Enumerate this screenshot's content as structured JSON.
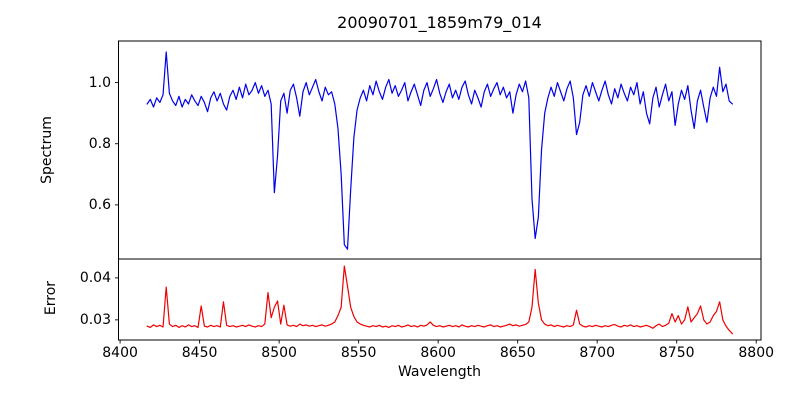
{
  "chart_data": {
    "type": "line",
    "title": "20090701_1859m79_014",
    "xlabel": "Wavelength",
    "xlim": [
      8399,
      8803
    ],
    "xticks": [
      8400,
      8450,
      8500,
      8550,
      8600,
      8650,
      8700,
      8750,
      8800
    ],
    "xtick_labels": [
      "8400",
      "8450",
      "8500",
      "8550",
      "8600",
      "8650",
      "8700",
      "8750",
      "8800"
    ],
    "grid": false,
    "legend": "none",
    "panels": [
      {
        "name": "spectrum",
        "ylabel": "Spectrum",
        "ylim": [
          0.423,
          1.136
        ],
        "ytick_values": [
          1.0,
          0.8,
          0.6
        ],
        "ytick_labels": [
          "1.0",
          "0.8",
          "0.6"
        ],
        "line_color": "#0000ee",
        "absorption_features": [
          {
            "wavelength": 8498,
            "depth": 0.64
          },
          {
            "wavelength": 8542,
            "depth": 0.455
          },
          {
            "wavelength": 8662,
            "depth": 0.49
          }
        ],
        "series": {
          "x_start": 8417,
          "x_step": 2,
          "values": [
            0.93,
            0.945,
            0.92,
            0.95,
            0.935,
            0.96,
            1.1,
            0.965,
            0.94,
            0.925,
            0.955,
            0.92,
            0.945,
            0.93,
            0.96,
            0.94,
            0.925,
            0.955,
            0.935,
            0.905,
            0.95,
            0.97,
            0.94,
            0.965,
            0.93,
            0.91,
            0.955,
            0.975,
            0.945,
            0.985,
            0.95,
            0.995,
            0.96,
            0.975,
            1.0,
            0.965,
            0.99,
            0.955,
            0.975,
            0.93,
            0.64,
            0.76,
            0.94,
            0.965,
            0.9,
            0.975,
            0.995,
            0.95,
            0.89,
            0.97,
            1.0,
            0.96,
            0.985,
            1.01,
            0.97,
            0.94,
            0.985,
            0.96,
            0.97,
            0.93,
            0.85,
            0.7,
            0.47,
            0.455,
            0.65,
            0.82,
            0.91,
            0.95,
            0.975,
            0.94,
            0.99,
            0.96,
            1.005,
            0.97,
            0.945,
            0.985,
            1.01,
            0.965,
            0.99,
            0.955,
            0.975,
            1.0,
            0.94,
            0.97,
            0.995,
            0.96,
            0.925,
            0.975,
            1.0,
            0.955,
            0.98,
            1.01,
            0.965,
            0.935,
            0.97,
            0.995,
            0.95,
            0.975,
            0.945,
            0.985,
            1.005,
            0.96,
            0.93,
            0.975,
            0.95,
            0.92,
            0.97,
            0.995,
            0.955,
            0.98,
            1.0,
            0.96,
            0.985,
            0.95,
            0.97,
            0.9,
            0.96,
            0.995,
            0.97,
            1.005,
            0.95,
            0.62,
            0.49,
            0.56,
            0.78,
            0.9,
            0.95,
            0.985,
            0.955,
            1.0,
            0.97,
            0.94,
            0.98,
            1.005,
            0.95,
            0.83,
            0.87,
            0.96,
            0.99,
            0.955,
            1.0,
            0.97,
            0.94,
            0.975,
            1.005,
            0.96,
            0.93,
            0.98,
            0.95,
            0.995,
            0.965,
            0.94,
            0.985,
            0.96,
            1.0,
            0.93,
            0.97,
            0.9,
            0.865,
            0.95,
            0.985,
            0.92,
            0.96,
            0.995,
            0.94,
            0.97,
            0.86,
            0.93,
            0.975,
            0.945,
            0.99,
            0.91,
            0.85,
            0.94,
            0.975,
            0.92,
            0.87,
            0.95,
            0.985,
            0.955,
            1.05,
            0.97,
            0.995,
            0.94,
            0.93
          ]
        }
      },
      {
        "name": "error",
        "ylabel": "Error",
        "ylim": [
          0.0252,
          0.0445
        ],
        "ytick_values": [
          0.04,
          0.03
        ],
        "ytick_labels": [
          "0.04",
          "0.03"
        ],
        "line_color": "#ee0000",
        "series": {
          "x_start": 8417,
          "x_step": 2,
          "values": [
            0.0285,
            0.0282,
            0.0288,
            0.0284,
            0.0287,
            0.0283,
            0.0378,
            0.029,
            0.0284,
            0.0287,
            0.0282,
            0.0286,
            0.0283,
            0.0288,
            0.0284,
            0.0286,
            0.0282,
            0.0333,
            0.0285,
            0.0283,
            0.0287,
            0.0284,
            0.0286,
            0.0283,
            0.0343,
            0.0287,
            0.0284,
            0.0286,
            0.0283,
            0.0285,
            0.0287,
            0.0284,
            0.0288,
            0.0285,
            0.0283,
            0.0286,
            0.0284,
            0.029,
            0.0365,
            0.0305,
            0.033,
            0.0345,
            0.029,
            0.0335,
            0.0288,
            0.0285,
            0.0287,
            0.0284,
            0.029,
            0.0286,
            0.0288,
            0.0285,
            0.0287,
            0.0284,
            0.0286,
            0.0288,
            0.0285,
            0.0287,
            0.029,
            0.0295,
            0.031,
            0.033,
            0.0428,
            0.038,
            0.033,
            0.0308,
            0.0295,
            0.029,
            0.0287,
            0.0285,
            0.0283,
            0.0286,
            0.0284,
            0.0287,
            0.0283,
            0.0285,
            0.0282,
            0.0286,
            0.0284,
            0.0287,
            0.0283,
            0.0285,
            0.0288,
            0.0284,
            0.0286,
            0.0283,
            0.0287,
            0.0285,
            0.0288,
            0.0295,
            0.0287,
            0.0284,
            0.0286,
            0.0283,
            0.0285,
            0.0287,
            0.0284,
            0.0286,
            0.0283,
            0.0288,
            0.0285,
            0.0283,
            0.0286,
            0.0284,
            0.0287,
            0.0285,
            0.0283,
            0.0286,
            0.0288,
            0.0284,
            0.0286,
            0.0283,
            0.0285,
            0.0287,
            0.029,
            0.0286,
            0.0288,
            0.0285,
            0.0287,
            0.0289,
            0.0295,
            0.033,
            0.042,
            0.034,
            0.03,
            0.029,
            0.0286,
            0.0288,
            0.0284,
            0.0287,
            0.0285,
            0.0283,
            0.0286,
            0.0284,
            0.0288,
            0.0323,
            0.029,
            0.0285,
            0.0283,
            0.0286,
            0.0284,
            0.0287,
            0.0285,
            0.0283,
            0.0286,
            0.0284,
            0.0287,
            0.0289,
            0.0285,
            0.0283,
            0.0287,
            0.0285,
            0.0288,
            0.0284,
            0.0286,
            0.0283,
            0.0285,
            0.0287,
            0.0284,
            0.028,
            0.0286,
            0.029,
            0.0284,
            0.0287,
            0.0292,
            0.0315,
            0.0295,
            0.031,
            0.029,
            0.03,
            0.0331,
            0.0295,
            0.0305,
            0.0315,
            0.0333,
            0.03,
            0.029,
            0.0295,
            0.031,
            0.032,
            0.0343,
            0.03,
            0.0285,
            0.0275,
            0.0267
          ]
        }
      }
    ],
    "colors": {
      "spectrum_line": "#0000ee",
      "error_line": "#ee0000",
      "axes": "#000000",
      "background": "#ffffff"
    }
  }
}
